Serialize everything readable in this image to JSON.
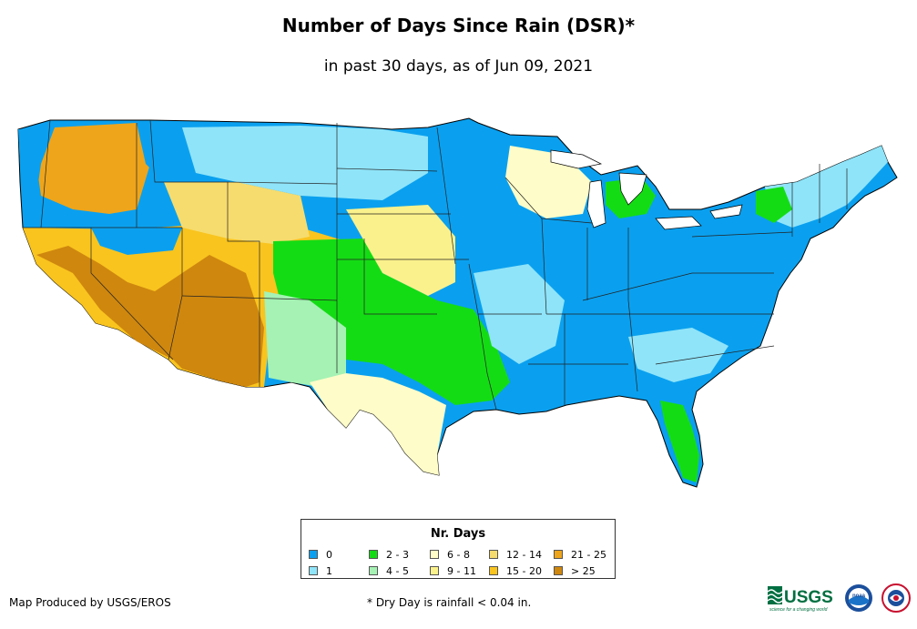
{
  "title": "Number of Days Since Rain (DSR)*",
  "subtitle": "in past 30 days, as of Jun 09, 2021",
  "legend": {
    "title": "Nr. Days",
    "items": [
      {
        "label": "0",
        "color": "#0aa0ef"
      },
      {
        "label": "1",
        "color": "#8fe4f9"
      },
      {
        "label": "2 - 3",
        "color": "#14dc14"
      },
      {
        "label": "4 - 5",
        "color": "#a5f2b4"
      },
      {
        "label": "6 - 8",
        "color": "#fefcc8"
      },
      {
        "label": "9 - 11",
        "color": "#fbf18c"
      },
      {
        "label": "12 - 14",
        "color": "#f6dc6e"
      },
      {
        "label": "15 - 20",
        "color": "#f9c41e"
      },
      {
        "label": "21 - 25",
        "color": "#eea51b"
      },
      {
        "label": "> 25",
        "color": "#cf870e"
      }
    ]
  },
  "footer": {
    "producer": "Map Produced by USGS/EROS",
    "note": "* Dry Day is rainfall < 0.04 in."
  },
  "logos": {
    "usgs": "USGS",
    "usgs_tagline": "science for a changing world",
    "noaa": "noaa",
    "nws": "national-weather-service-logo"
  }
}
